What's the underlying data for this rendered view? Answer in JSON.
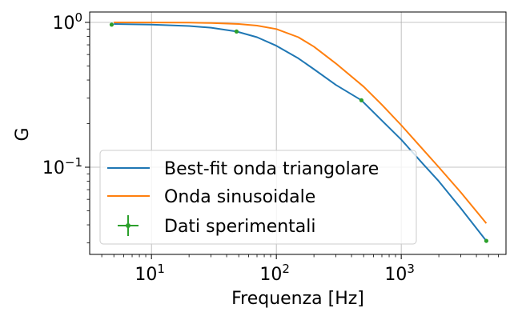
{
  "chart_data": {
    "type": "line",
    "xlabel": "Frequenza [Hz]",
    "ylabel": "G",
    "x_scale": "log",
    "y_scale": "log",
    "xlim": [
      3.2,
      6900
    ],
    "ylim": [
      0.025,
      1.18
    ],
    "grid": true,
    "legend_position": "lower-left",
    "x_ticks": [
      {
        "base": "10",
        "exp": "1",
        "value": 10
      },
      {
        "base": "10",
        "exp": "2",
        "value": 100
      },
      {
        "base": "10",
        "exp": "3",
        "value": 1000
      }
    ],
    "y_ticks": [
      {
        "base": "10",
        "exp": "0",
        "value": 1
      },
      {
        "base": "10",
        "exp": "−1",
        "value": 0.1
      }
    ],
    "series": [
      {
        "name": "Best-fit onda triangolare",
        "kind": "line",
        "color": "#1f77b4",
        "x": [
          5,
          10,
          20,
          30,
          48,
          70,
          100,
          150,
          200,
          300,
          480,
          700,
          1000,
          1500,
          2000,
          3000,
          4800
        ],
        "y": [
          0.975,
          0.965,
          0.945,
          0.92,
          0.865,
          0.79,
          0.69,
          0.565,
          0.475,
          0.37,
          0.29,
          0.21,
          0.155,
          0.105,
          0.08,
          0.052,
          0.031
        ]
      },
      {
        "name": "Onda sinusoidale",
        "kind": "line",
        "color": "#ff7f0e",
        "x": [
          5,
          10,
          20,
          30,
          50,
          70,
          100,
          150,
          200,
          300,
          500,
          700,
          1000,
          1500,
          2000,
          3000,
          4800
        ],
        "y": [
          1.0,
          0.999,
          0.996,
          0.99,
          0.975,
          0.95,
          0.9,
          0.79,
          0.68,
          0.52,
          0.36,
          0.27,
          0.195,
          0.132,
          0.1,
          0.067,
          0.041
        ]
      },
      {
        "name": "Dati sperimentali",
        "kind": "errorbar",
        "color": "#2ca02c",
        "x": [
          4.8,
          48,
          480,
          4800
        ],
        "y": [
          0.965,
          0.865,
          0.29,
          0.031
        ]
      }
    ]
  }
}
